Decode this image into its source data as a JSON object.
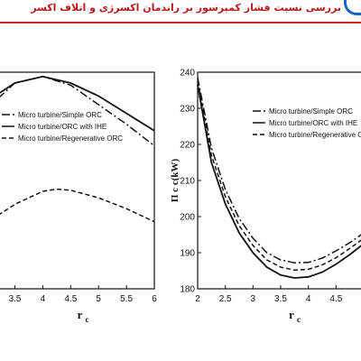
{
  "header": {
    "title": "بررسی نسبت فشار کمپرسور بر راندمان اکسرژی و اتلاف اکسر",
    "accent_color": "#c62828",
    "logo_icon": "arc-logo-icon"
  },
  "chart_data": [
    {
      "type": "line",
      "title": "",
      "xlabel": "r",
      "xlabel_sub": "c",
      "ylabel": "",
      "xlim": [
        3.2,
        6
      ],
      "ylim": [
        0,
        1
      ],
      "x_ticks": [
        "3.5",
        "4",
        "4.5",
        "5",
        "5.5",
        "6"
      ],
      "legend_position": "top-left",
      "grid": false,
      "series": [
        {
          "name": "Micro turbine/Simple ORC",
          "style": "dashdot",
          "x": [
            3.2,
            3.5,
            4.0,
            4.5,
            5.0,
            5.5,
            6.0
          ],
          "y": [
            0.88,
            0.95,
            0.98,
            0.94,
            0.85,
            0.76,
            0.66
          ]
        },
        {
          "name": "Micro turbine/ORC with IHE",
          "style": "solid",
          "x": [
            3.2,
            3.5,
            4.0,
            4.5,
            5.0,
            5.5,
            6.0
          ],
          "y": [
            0.9,
            0.95,
            0.98,
            0.95,
            0.89,
            0.81,
            0.73
          ]
        },
        {
          "name": "Micro turbine/Regenerative ORC",
          "style": "dashed",
          "x": [
            3.2,
            3.5,
            4.0,
            4.25,
            4.5,
            5.0,
            5.5,
            6.0
          ],
          "y": [
            0.34,
            0.39,
            0.45,
            0.46,
            0.455,
            0.42,
            0.37,
            0.31
          ]
        }
      ]
    },
    {
      "type": "line",
      "title": "",
      "xlabel": "r",
      "xlabel_sub": "c",
      "ylabel": "Π c c(kW)",
      "xlim": [
        2,
        5
      ],
      "ylim": [
        180,
        240
      ],
      "x_ticks": [
        "2",
        "2.5",
        "3",
        "3.5",
        "4",
        "4.5"
      ],
      "y_ticks": [
        "180",
        "190",
        "200",
        "210",
        "220",
        "230",
        "240"
      ],
      "legend_position": "top-right",
      "grid": false,
      "series": [
        {
          "name": "Micro turbine/Simple ORC",
          "style": "dashdot",
          "x": [
            2.0,
            2.25,
            2.5,
            2.75,
            3.0,
            3.25,
            3.5,
            3.75,
            4.0,
            4.25,
            4.5,
            4.75,
            5.0
          ],
          "y": [
            238.5,
            219,
            207.5,
            199.5,
            194,
            190,
            188,
            187.2,
            187.3,
            188.5,
            190.5,
            192.8,
            195.5
          ]
        },
        {
          "name": "Micro turbine/ORC with IHE",
          "style": "solid",
          "x": [
            2.0,
            2.25,
            2.5,
            2.75,
            3.0,
            3.25,
            3.5,
            3.75,
            4.0,
            4.25,
            4.5,
            4.75,
            5.0
          ],
          "y": [
            236.5,
            215,
            203.5,
            195.5,
            190,
            186,
            183.8,
            183,
            183.3,
            184.6,
            186.8,
            189.5,
            192.5
          ]
        },
        {
          "name": "Micro turbine/Regenerative ORC",
          "style": "dashed",
          "x": [
            2.0,
            2.25,
            2.5,
            2.75,
            3.0,
            3.25,
            3.5,
            3.75,
            4.0,
            4.25,
            4.5,
            4.75,
            5.0
          ],
          "y": [
            237.5,
            217,
            205.5,
            197.5,
            192,
            188,
            186,
            185.2,
            185.4,
            186.6,
            188.6,
            191.2,
            194
          ]
        }
      ]
    }
  ]
}
